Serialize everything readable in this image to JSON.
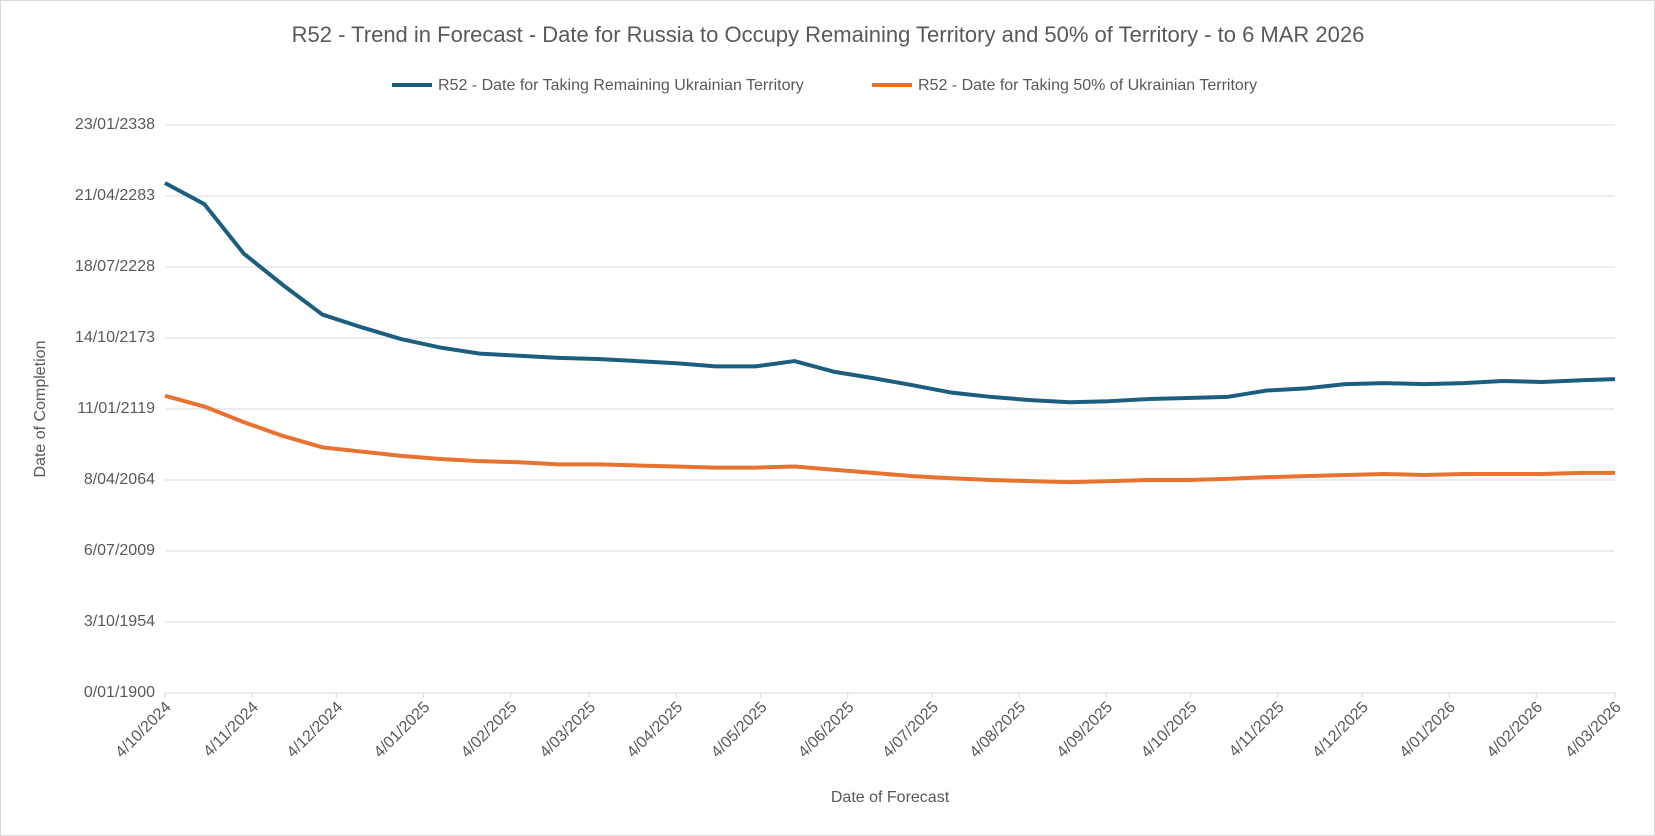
{
  "chart_data": {
    "type": "line",
    "title": "R52 - Trend in Forecast - Date for Russia to Occupy Remaining Territory and 50% of Territory - to 6 MAR 2026",
    "x_label": "Date of Forecast",
    "y_label": "Date of Completion",
    "x": [
      45569,
      45583,
      45597,
      45611,
      45625,
      45639,
      45653,
      45667,
      45681,
      45695,
      45709,
      45723,
      45737,
      45751,
      45765,
      45779,
      45793,
      45807,
      45821,
      45835,
      45849,
      45863,
      45877,
      45891,
      45905,
      45919,
      45933,
      45947,
      45961,
      45975,
      45989,
      46003,
      46017,
      46031,
      46045,
      46059,
      46073,
      46085
    ],
    "series": [
      {
        "name": "R52 - Date for Taking Remaining Ukrainian Territory",
        "color": "#1b5e7e",
        "values": [
          143650,
          137700,
          123800,
          114900,
          106600,
          103000,
          99700,
          97300,
          95600,
          95000,
          94400,
          94100,
          93500,
          92900,
          92000,
          92000,
          93500,
          90500,
          88700,
          86700,
          84600,
          83400,
          82500,
          81900,
          82200,
          82800,
          83100,
          83400,
          85200,
          85800,
          87000,
          87300,
          87000,
          87300,
          87900,
          87600,
          88100,
          88400
        ]
      },
      {
        "name": "R52 - Date for Taking  50% of Ukrainian Territory",
        "color": "#e8722f",
        "values": [
          83700,
          80700,
          76300,
          72400,
          69200,
          68000,
          66800,
          65900,
          65300,
          65000,
          64400,
          64400,
          64100,
          63800,
          63500,
          63500,
          63800,
          62900,
          62000,
          61100,
          60500,
          60000,
          59700,
          59400,
          59700,
          60000,
          60000,
          60300,
          60800,
          61100,
          61400,
          61700,
          61400,
          61700,
          61700,
          61700,
          62000,
          62000
        ]
      }
    ],
    "xlim": [
      45569,
      46085
    ],
    "xticks": [
      {
        "value": 45569,
        "label": "4/10/2024"
      },
      {
        "value": 45600,
        "label": "4/11/2024"
      },
      {
        "value": 45630,
        "label": "4/12/2024"
      },
      {
        "value": 45661,
        "label": "4/01/2025"
      },
      {
        "value": 45692,
        "label": "4/02/2025"
      },
      {
        "value": 45720,
        "label": "4/03/2025"
      },
      {
        "value": 45751,
        "label": "4/04/2025"
      },
      {
        "value": 45781,
        "label": "4/05/2025"
      },
      {
        "value": 45812,
        "label": "4/06/2025"
      },
      {
        "value": 45842,
        "label": "4/07/2025"
      },
      {
        "value": 45873,
        "label": "4/08/2025"
      },
      {
        "value": 45904,
        "label": "4/09/2025"
      },
      {
        "value": 45934,
        "label": "4/10/2025"
      },
      {
        "value": 45965,
        "label": "4/11/2025"
      },
      {
        "value": 45995,
        "label": "4/12/2025"
      },
      {
        "value": 46026,
        "label": "4/01/2026"
      },
      {
        "value": 46057,
        "label": "4/02/2026"
      },
      {
        "value": 46085,
        "label": "4/03/2026"
      }
    ],
    "ylim": [
      0,
      160000
    ],
    "yticks": [
      {
        "value": 0,
        "label": "0/01/1900"
      },
      {
        "value": 20000,
        "label": "3/10/1954"
      },
      {
        "value": 40000,
        "label": "6/07/2009"
      },
      {
        "value": 60000,
        "label": "8/04/2064"
      },
      {
        "value": 80000,
        "label": "11/01/2119"
      },
      {
        "value": 100000,
        "label": "14/10/2173"
      },
      {
        "value": 120000,
        "label": "18/07/2228"
      },
      {
        "value": 140000,
        "label": "21/04/2283"
      },
      {
        "value": 160000,
        "label": "23/01/2338"
      }
    ],
    "grid": true,
    "legend": "top"
  }
}
